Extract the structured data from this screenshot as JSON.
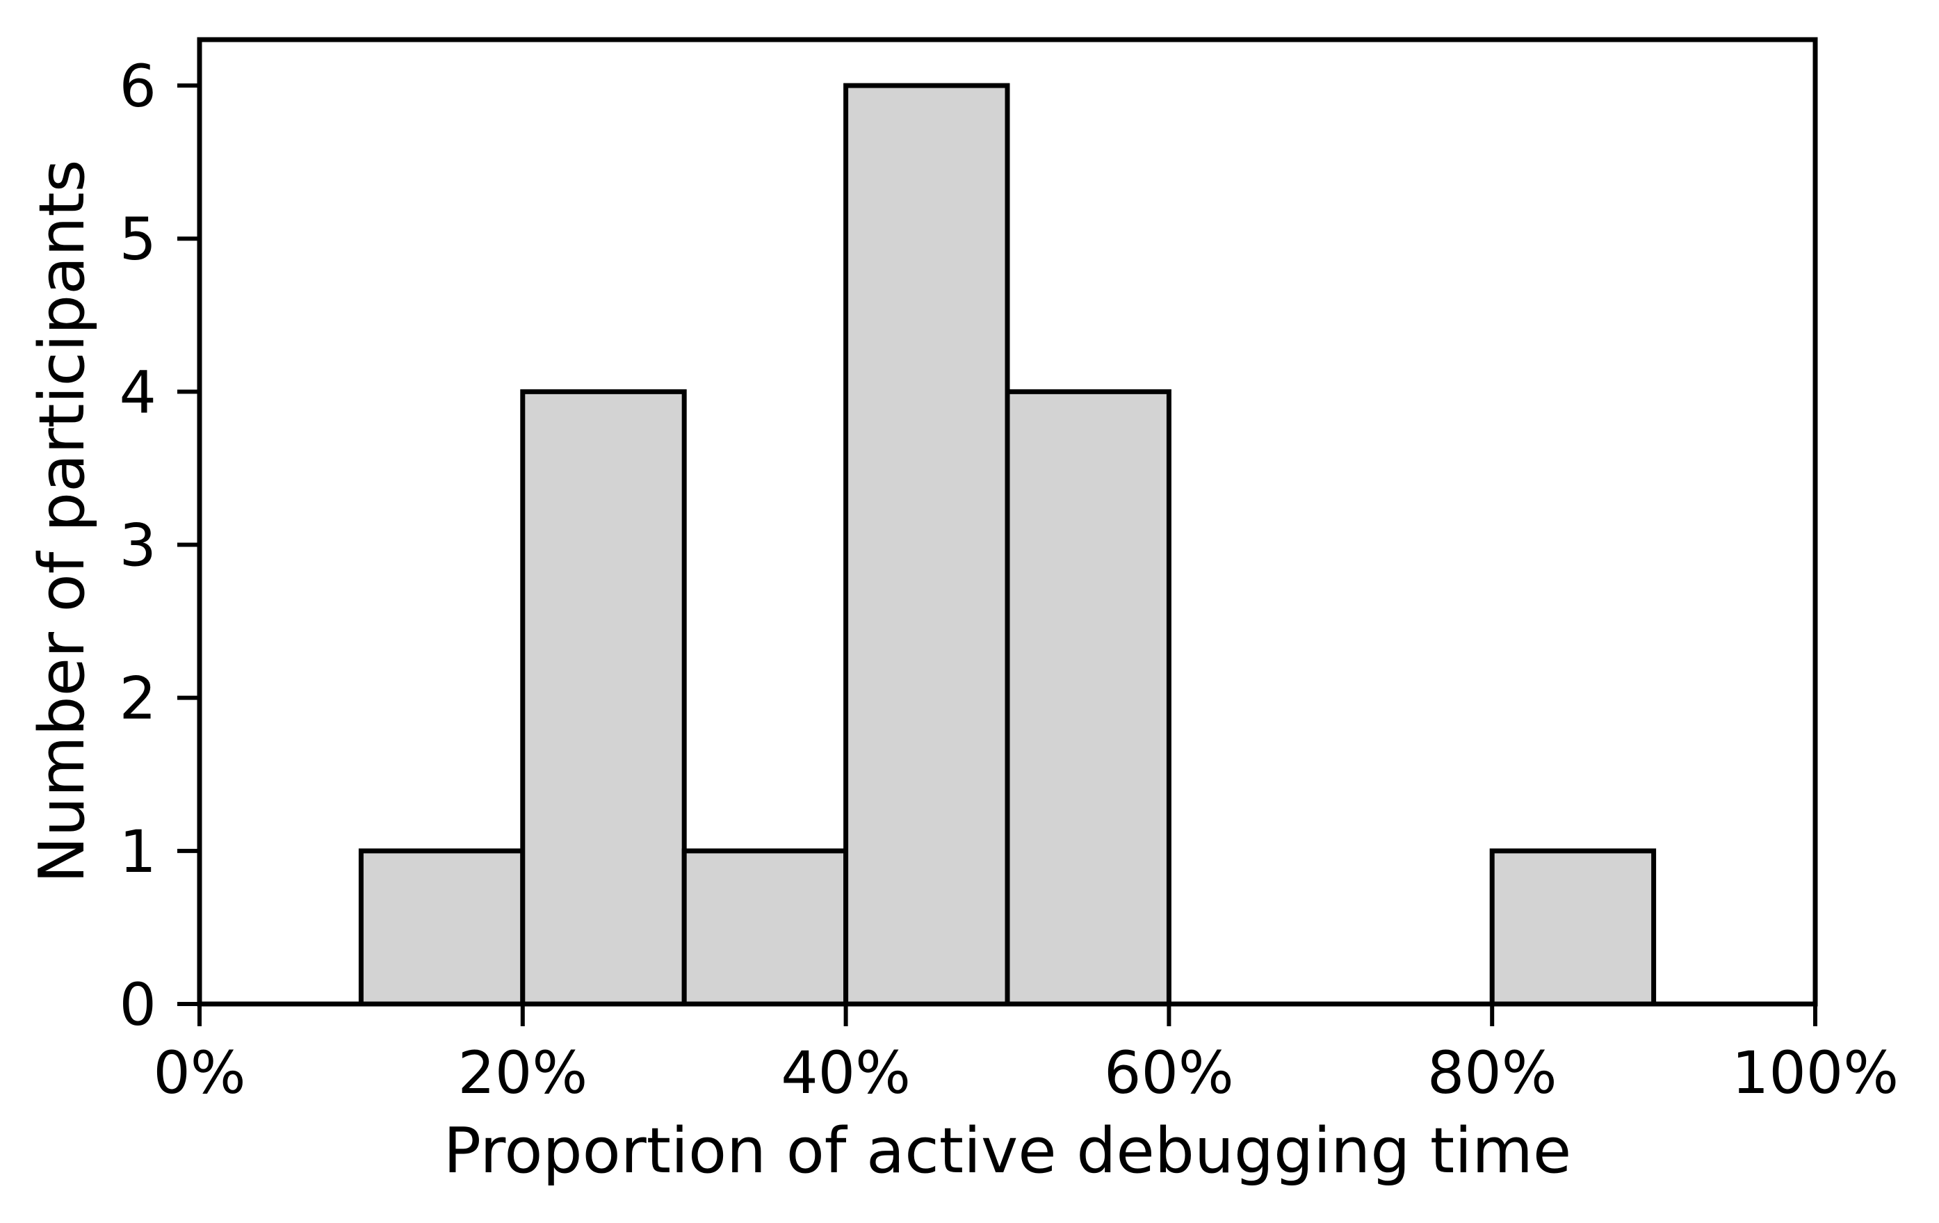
{
  "chart_data": {
    "type": "bar",
    "subtype": "histogram",
    "title": "",
    "xlabel": "Proportion of active debugging time",
    "ylabel": "Number of participants",
    "xlim": [
      0,
      100
    ],
    "ylim": [
      0,
      6.3
    ],
    "x_tick_values": [
      0,
      20,
      40,
      60,
      80,
      100
    ],
    "x_tick_labels": [
      "0%",
      "20%",
      "40%",
      "60%",
      "80%",
      "100%"
    ],
    "y_tick_values": [
      0,
      1,
      2,
      3,
      4,
      5,
      6
    ],
    "y_tick_labels": [
      "0",
      "1",
      "2",
      "3",
      "4",
      "5",
      "6"
    ],
    "bin_width_percent": 10,
    "bins": [
      {
        "range": [
          10,
          20
        ],
        "count": 1
      },
      {
        "range": [
          20,
          30
        ],
        "count": 4
      },
      {
        "range": [
          30,
          40
        ],
        "count": 1
      },
      {
        "range": [
          40,
          50
        ],
        "count": 6
      },
      {
        "range": [
          50,
          60
        ],
        "count": 4
      },
      {
        "range": [
          80,
          90
        ],
        "count": 1
      }
    ],
    "total_participants": 17,
    "grid": false,
    "legend": false,
    "colors": {
      "bar_fill": "#d3d3d3",
      "bar_edge": "#000000",
      "axis": "#000000",
      "background": "#ffffff"
    }
  }
}
